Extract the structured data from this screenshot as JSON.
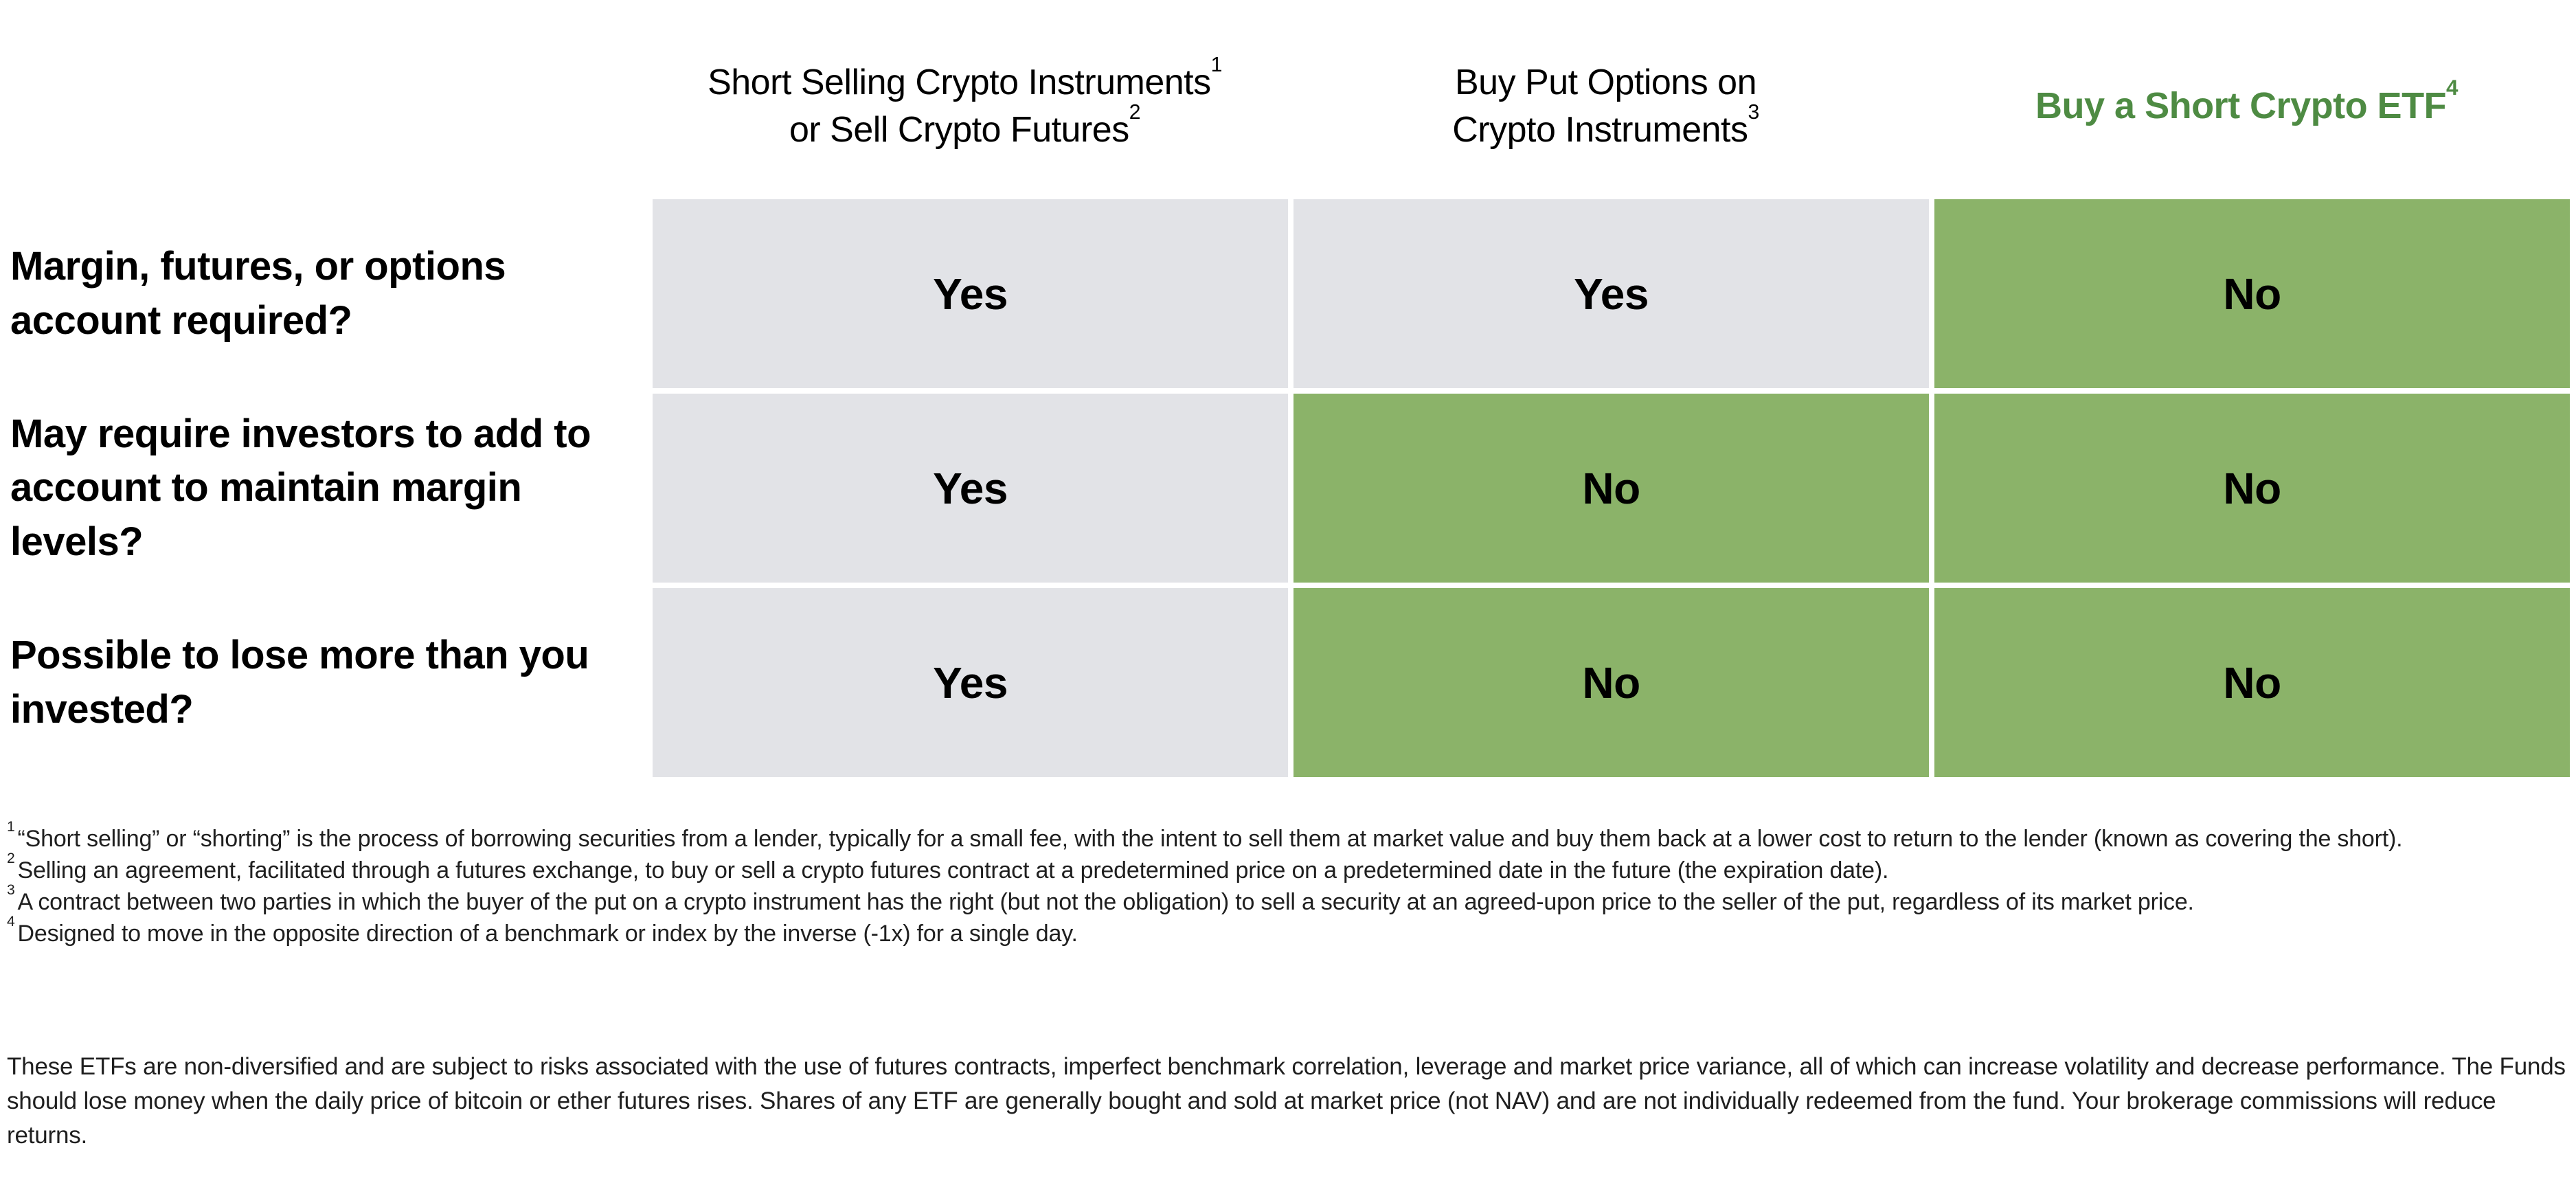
{
  "colors": {
    "cell_gray": "#e2e3e7",
    "cell_green": "#8bb369",
    "header_green": "#4e8b43",
    "text_black": "#000000",
    "footnote_text": "#1f1f1f"
  },
  "header": {
    "col1_line1": "Short Selling Crypto Instruments",
    "col1_sup1": "1",
    "col1_line2": "or Sell Crypto Futures",
    "col1_sup2": "2",
    "col2_line1": "Buy Put Options on",
    "col2_line2": "Crypto Instruments",
    "col2_sup": "3",
    "col3_title": "Buy a Short Crypto ETF",
    "col3_sup": "4"
  },
  "table": {
    "rows": [
      {
        "question": "Margin, futures, or options account required?",
        "answers": [
          {
            "value": "Yes",
            "style": "gray"
          },
          {
            "value": "Yes",
            "style": "gray"
          },
          {
            "value": "No",
            "style": "green"
          }
        ]
      },
      {
        "question": "May require investors to add to account to maintain margin levels?",
        "answers": [
          {
            "value": "Yes",
            "style": "gray"
          },
          {
            "value": "No",
            "style": "green"
          },
          {
            "value": "No",
            "style": "green"
          }
        ]
      },
      {
        "question": "Possible to lose more than you invested?",
        "answers": [
          {
            "value": "Yes",
            "style": "gray"
          },
          {
            "value": "No",
            "style": "green"
          },
          {
            "value": "No",
            "style": "green"
          }
        ]
      }
    ]
  },
  "footnotes": [
    {
      "marker": "1",
      "text": "“Short selling” or “shorting” is the process of borrowing securities from a lender, typically for a small fee, with the intent to sell them at market value and buy them back at a lower cost to return to the lender (known as covering the short)."
    },
    {
      "marker": "2",
      "text": "Selling an agreement, facilitated through a futures exchange, to buy or sell a crypto futures contract at a predetermined price on a predetermined date in the future (the expiration date)."
    },
    {
      "marker": "3",
      "text": "A contract between two parties in which the buyer of the put on a crypto instrument has the right (but not the obligation) to sell a security at an agreed-upon price to the seller of the put, regardless of its market price."
    },
    {
      "marker": "4",
      "text": "Designed to move in the opposite direction of a benchmark or index by the inverse (-1x) for a single day."
    }
  ],
  "disclaimer": "These ETFs are non-diversified and are subject to risks associated with the use of futures contracts, imperfect benchmark correlation, leverage and market price variance, all of which can increase volatility and decrease performance. The Funds should lose money when the daily price of bitcoin or ether futures rises. Shares of any ETF are generally bought and sold at market price (not NAV) and are not individually redeemed from the fund. Your brokerage commissions will reduce returns."
}
